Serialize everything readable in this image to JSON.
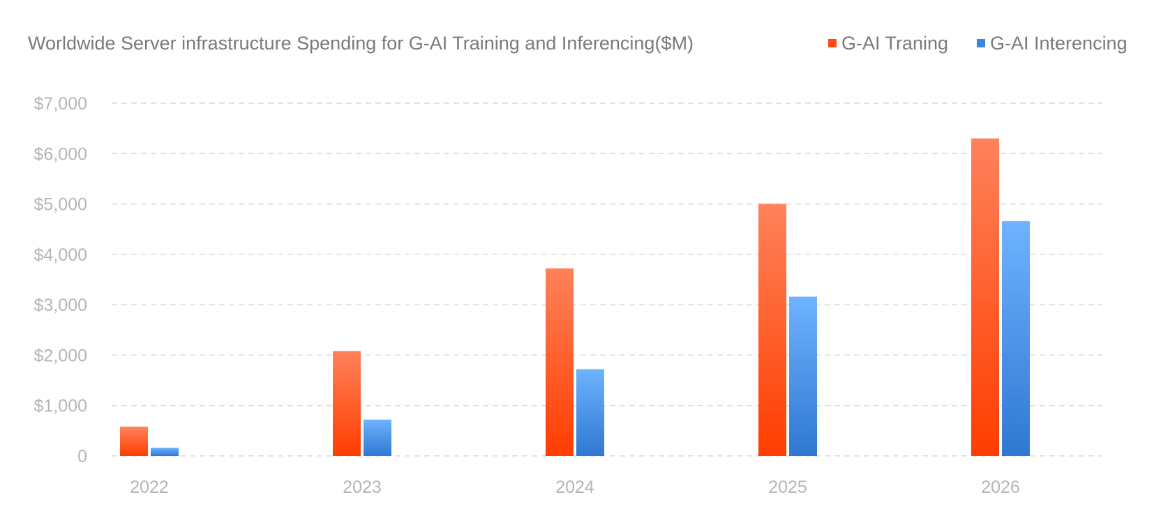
{
  "chart_data": {
    "type": "bar",
    "title": "Worldwide Server infrastructure Spending for G-AI Training and Inferencing($M)",
    "xlabel": "",
    "ylabel": "",
    "categories": [
      "2022",
      "2023",
      "2024",
      "2025",
      "2026"
    ],
    "series": [
      {
        "name": "G-AI Traning",
        "values": [
          580,
          2080,
          3720,
          5000,
          6300
        ],
        "color_top": "#ff825a",
        "color_bottom": "#ff3d00",
        "legend_color": "#ff4a12"
      },
      {
        "name": "G-AI Interencing",
        "values": [
          160,
          720,
          1720,
          3160,
          4660
        ],
        "color_top": "#6eb3ff",
        "color_bottom": "#2f78d2",
        "legend_color": "#3a86e0"
      }
    ],
    "ylim": [
      0,
      7000
    ],
    "yticks": [
      0,
      1000,
      2000,
      3000,
      4000,
      5000,
      6000,
      7000
    ],
    "ytick_labels": [
      "0",
      "$1,000",
      "$2,000",
      "$3,000",
      "$4,000",
      "$5,000",
      "$6,000",
      "$7,000"
    ],
    "grid": true,
    "legend_position": "top-right"
  }
}
